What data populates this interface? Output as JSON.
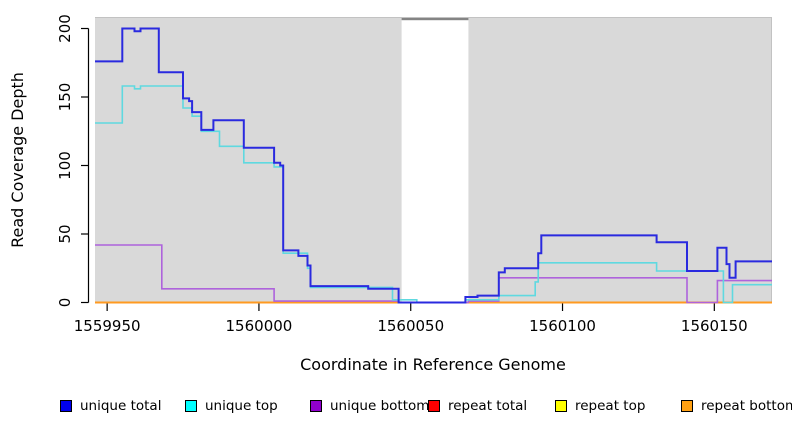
{
  "chart_data": {
    "type": "line",
    "title": "",
    "xlabel": "Coordinate in Reference Genome",
    "ylabel": "Read Coverage Depth",
    "x_ticks": [
      "1559950",
      "1560000",
      "1560050",
      "1560100",
      "1560150"
    ],
    "x_tick_values": [
      1559950,
      1560000,
      1560050,
      1560100,
      1560150
    ],
    "y_ticks": [
      "0",
      "50",
      "100",
      "150",
      "200"
    ],
    "y_tick_values": [
      0,
      50,
      100,
      150,
      200
    ],
    "xlim": [
      1559946,
      1560169
    ],
    "ylim": [
      0,
      208
    ],
    "step": "after",
    "grid": false,
    "panel_background": "#d9d9d9",
    "panel_border_color": "#c2c2c2",
    "masked_region": {
      "x0": 1560047,
      "x1": 1560069,
      "fill": "#ffffff",
      "top_bar_color": "#848484"
    },
    "legend_position": "bottom",
    "series": [
      {
        "name": "unique total",
        "color": "#2a2adf",
        "legend_color": "#0000ee",
        "line_width": 2,
        "points": [
          [
            1559946,
            176
          ],
          [
            1559955,
            200
          ],
          [
            1559959,
            198
          ],
          [
            1559961,
            200
          ],
          [
            1559967,
            168
          ],
          [
            1559975,
            149
          ],
          [
            1559977,
            147
          ],
          [
            1559978,
            139
          ],
          [
            1559981,
            126
          ],
          [
            1559985,
            133
          ],
          [
            1559995,
            113
          ],
          [
            1560005,
            102
          ],
          [
            1560007,
            100
          ],
          [
            1560008,
            38
          ],
          [
            1560013,
            34
          ],
          [
            1560016,
            27
          ],
          [
            1560017,
            12
          ],
          [
            1560036,
            10
          ],
          [
            1560046,
            0
          ],
          [
            1560068,
            4
          ],
          [
            1560072,
            5
          ],
          [
            1560079,
            22
          ],
          [
            1560081,
            25
          ],
          [
            1560092,
            36
          ],
          [
            1560093,
            49
          ],
          [
            1560131,
            44
          ],
          [
            1560141,
            23
          ],
          [
            1560151,
            40
          ],
          [
            1560154,
            28
          ],
          [
            1560155,
            18
          ],
          [
            1560157,
            30
          ],
          [
            1560169,
            30
          ]
        ]
      },
      {
        "name": "unique top",
        "color": "#5fd9e0",
        "legend_color": "#00ffff",
        "line_width": 1.6,
        "points": [
          [
            1559946,
            131
          ],
          [
            1559955,
            158
          ],
          [
            1559959,
            156
          ],
          [
            1559961,
            158
          ],
          [
            1559975,
            142
          ],
          [
            1559978,
            136
          ],
          [
            1559981,
            125
          ],
          [
            1559987,
            114
          ],
          [
            1559995,
            102
          ],
          [
            1560005,
            99
          ],
          [
            1560008,
            36
          ],
          [
            1560016,
            25
          ],
          [
            1560017,
            11
          ],
          [
            1560044,
            2
          ],
          [
            1560052,
            0
          ],
          [
            1560068,
            2
          ],
          [
            1560079,
            5
          ],
          [
            1560091,
            15
          ],
          [
            1560092,
            29
          ],
          [
            1560131,
            23
          ],
          [
            1560153,
            0
          ],
          [
            1560156,
            13
          ],
          [
            1560169,
            13
          ]
        ]
      },
      {
        "name": "unique bottom",
        "color": "#ae63dc",
        "legend_color": "#9100ce",
        "line_width": 1.6,
        "points": [
          [
            1559946,
            42
          ],
          [
            1559968,
            10
          ],
          [
            1560005,
            1
          ],
          [
            1560046,
            0
          ],
          [
            1560069,
            1
          ],
          [
            1560079,
            18
          ],
          [
            1560141,
            0
          ],
          [
            1560151,
            16
          ],
          [
            1560169,
            16
          ]
        ]
      },
      {
        "name": "repeat total",
        "color": "#dd2222",
        "legend_color": "#ff0000",
        "line_width": 1.5,
        "points": [
          [
            1559946,
            0
          ],
          [
            1560169,
            0
          ]
        ]
      },
      {
        "name": "repeat top",
        "color": "#eeee22",
        "legend_color": "#ffff00",
        "line_width": 1.5,
        "points": [
          [
            1559946,
            0
          ],
          [
            1560169,
            0
          ]
        ]
      },
      {
        "name": "repeat bottom",
        "color": "#ff9a20",
        "legend_color": "#ffa013",
        "line_width": 2,
        "points": [
          [
            1559946,
            0
          ],
          [
            1560169,
            0
          ]
        ]
      }
    ]
  }
}
